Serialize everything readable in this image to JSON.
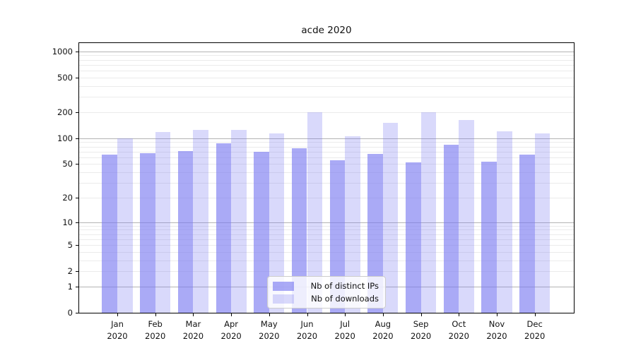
{
  "chart_data": {
    "type": "bar",
    "title": "acde 2020",
    "categories": [
      "Jan 2020",
      "Feb 2020",
      "Mar 2020",
      "Apr 2020",
      "May 2020",
      "Jun 2020",
      "Jul 2020",
      "Aug 2020",
      "Sep 2020",
      "Oct 2020",
      "Nov 2020",
      "Dec 2020"
    ],
    "series": [
      {
        "name": "Nb of distinct IPs",
        "color": "rgba(120,120,240,0.63)",
        "values": [
          65,
          67,
          71,
          87,
          70,
          76,
          55,
          66,
          52,
          84,
          53,
          65
        ]
      },
      {
        "name": "Nb of downloads",
        "color": "rgba(120,120,240,0.28)",
        "values": [
          100,
          117,
          124,
          125,
          113,
          199,
          106,
          150,
          199,
          163,
          119,
          114
        ]
      }
    ],
    "xlabel": "",
    "ylabel": "",
    "yscale": "log1p",
    "yticks": [
      0,
      1,
      2,
      5,
      10,
      20,
      50,
      100,
      200,
      500,
      1000
    ],
    "ylim": [
      0,
      1250
    ],
    "grid": "on",
    "legend_position": "lower center",
    "colors": {
      "bar_base": "#7878f0",
      "axis": "#000000",
      "major_grid": "#b4b4b4",
      "minor_grid": "#ebebeb"
    }
  }
}
